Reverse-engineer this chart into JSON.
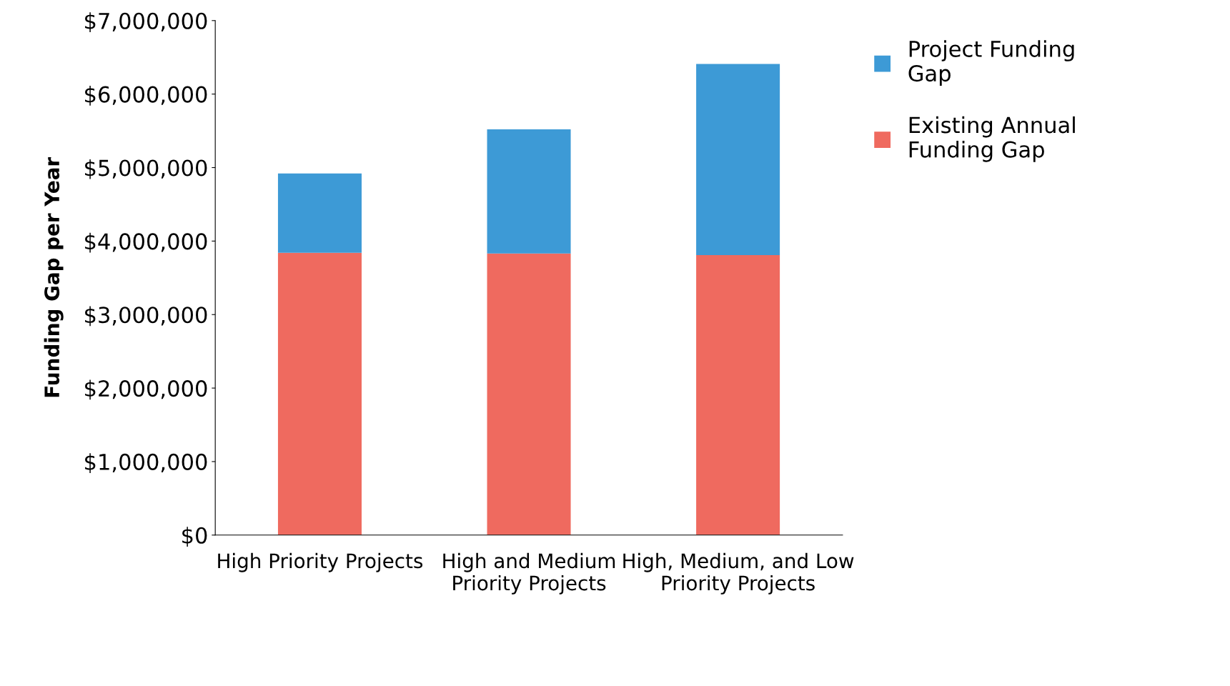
{
  "chart_data": {
    "type": "bar",
    "stacked": true,
    "ylabel": "Funding Gap per Year",
    "categories": [
      "High Priority Projects",
      "High and Medium Priority Projects",
      "High, Medium, and Low Priority Projects"
    ],
    "series": [
      {
        "name": "Existing Annual Funding Gap",
        "color": "#ef6a5f",
        "values": [
          3840000,
          3830000,
          3810000
        ]
      },
      {
        "name": "Project Funding Gap",
        "color": "#3d9ad6",
        "values": [
          1080000,
          1690000,
          2600000
        ]
      }
    ],
    "ylim": [
      0,
      7000000
    ],
    "yticks": [
      {
        "value": 0,
        "label": "$0"
      },
      {
        "value": 1000000,
        "label": "$1,000,000"
      },
      {
        "value": 2000000,
        "label": "$2,000,000"
      },
      {
        "value": 3000000,
        "label": "$3,000,000"
      },
      {
        "value": 4000000,
        "label": "$4,000,000"
      },
      {
        "value": 5000000,
        "label": "$5,000,000"
      },
      {
        "value": 6000000,
        "label": "$6,000,000"
      },
      {
        "value": 7000000,
        "label": "$7,000,000"
      }
    ],
    "grid": false,
    "legend": "top right"
  }
}
